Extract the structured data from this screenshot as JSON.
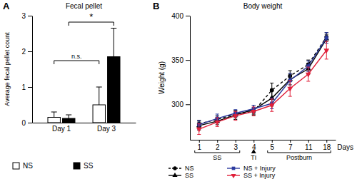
{
  "chart_data": [
    {
      "type": "bar",
      "title": "Fecal pellet",
      "y_label": "Average fecal pellet count",
      "categories": [
        "Day 1",
        "Day 3"
      ],
      "series": [
        {
          "name": "NS",
          "color": "#ffffff",
          "values": [
            0.15,
            0.5
          ],
          "errors": [
            0.15,
            0.5
          ]
        },
        {
          "name": "SS",
          "color": "#000000",
          "values": [
            0.12,
            1.85
          ],
          "errors": [
            0.1,
            0.8
          ]
        }
      ],
      "ylim": [
        0,
        3
      ],
      "yticks": [
        0,
        1,
        2,
        3
      ],
      "legend": "bottom",
      "annotations": [
        "A",
        "n.s.",
        "*"
      ]
    },
    {
      "type": "line",
      "title": "Body weight",
      "y_label": "Weight (g)",
      "x_label": "Days",
      "categories": [
        "1",
        "2",
        "3",
        "4",
        "5",
        "7",
        "11",
        "18"
      ],
      "series": [
        {
          "name": "NS",
          "color": "#000000",
          "line_style": "dashed",
          "marker": "circle",
          "values": [
            278,
            283,
            289,
            292,
            316,
            332,
            345,
            376
          ],
          "errors": [
            4,
            4,
            4,
            4,
            8,
            6,
            5,
            5
          ]
        },
        {
          "name": "SS",
          "color": "#000000",
          "line_style": "solid",
          "marker": "triangle",
          "values": [
            276,
            281,
            288,
            294,
            307,
            328,
            340,
            374
          ],
          "errors": [
            5,
            4,
            5,
            5,
            9,
            6,
            6,
            5
          ]
        },
        {
          "name": "NS + Injury",
          "color": "#2b3a9e",
          "line_style": "solid",
          "marker": "square",
          "values": [
            277,
            284,
            290,
            295,
            301,
            327,
            343,
            375
          ],
          "errors": [
            5,
            5,
            4,
            4,
            6,
            8,
            6,
            6
          ]
        },
        {
          "name": "SS + Injury",
          "color": "#e0203a",
          "line_style": "solid",
          "marker": "triangle-down",
          "values": [
            272,
            280,
            287,
            292,
            299,
            318,
            334,
            361
          ],
          "errors": [
            6,
            5,
            5,
            5,
            7,
            9,
            8,
            10
          ]
        }
      ],
      "ylim": [
        260,
        400
      ],
      "yticks": [
        300,
        350,
        400
      ],
      "legend": "bottom",
      "annotations": [
        "B",
        "SS",
        "TI",
        "Postburn"
      ]
    }
  ]
}
